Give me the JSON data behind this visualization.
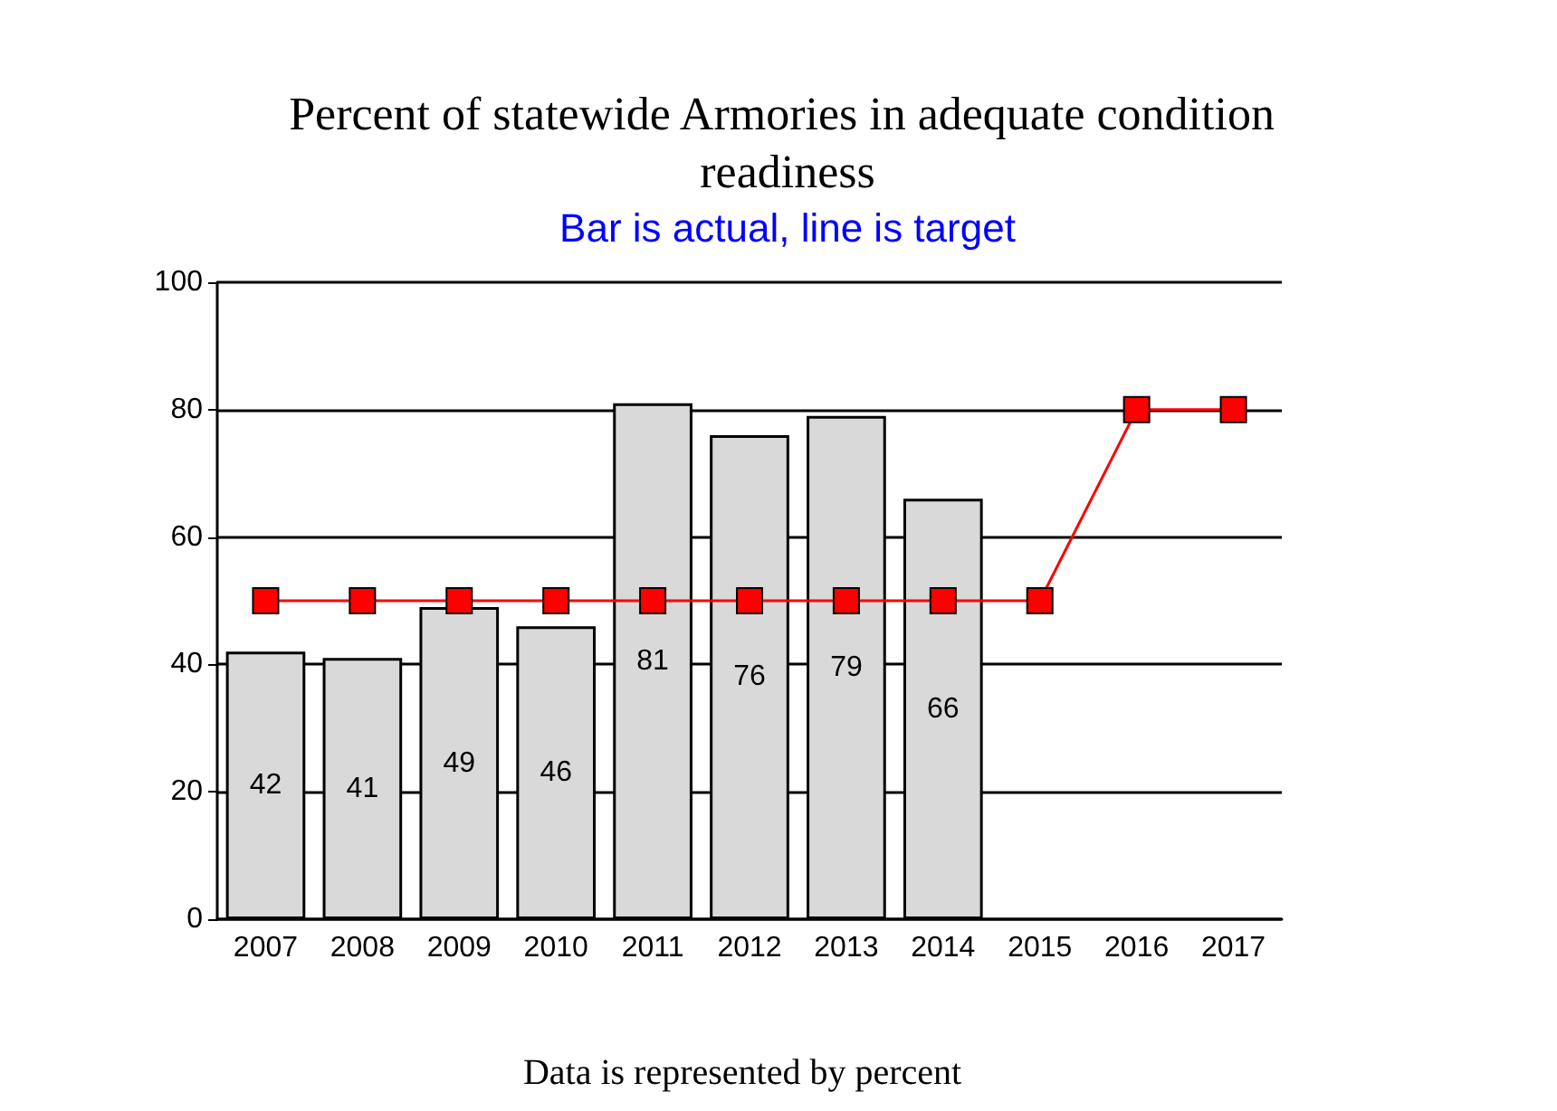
{
  "chart_data": {
    "type": "bar",
    "title": "Percent of statewide Armories in adequate condition readiness",
    "subtitle": "Bar is actual, line is target",
    "categories": [
      "2007",
      "2008",
      "2009",
      "2010",
      "2011",
      "2012",
      "2013",
      "2014",
      "2015",
      "2016",
      "2017"
    ],
    "series": [
      {
        "color": "#d9d9d9",
        "values": [
          42,
          41,
          49,
          46,
          81,
          76,
          79,
          66,
          null,
          null,
          null
        ],
        "value_labels": [
          "42",
          "41",
          "49",
          "46",
          "81",
          "76",
          "79",
          "66",
          null,
          null,
          null
        ]
      },
      {
        "type": "line",
        "color": "#ff0000",
        "marker": "square",
        "line_style": "solid",
        "values": [
          50,
          50,
          50,
          50,
          50,
          50,
          50,
          50,
          50,
          80,
          80
        ]
      }
    ],
    "ylim": [
      0,
      100
    ],
    "yticks": [
      0,
      20,
      40,
      60,
      80,
      100
    ],
    "grid": "y",
    "annotations": [
      "Data is represented by percent"
    ]
  }
}
